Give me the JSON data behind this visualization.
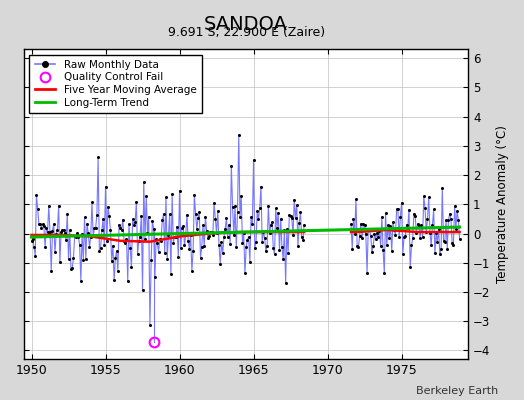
{
  "title": "SANDOA",
  "subtitle": "9.691 S, 22.900 E (Zaire)",
  "ylabel": "Temperature Anomaly (°C)",
  "xlim": [
    1949.5,
    1979.5
  ],
  "ylim": [
    -4.3,
    6.3
  ],
  "yticks": [
    -4,
    -3,
    -2,
    -1,
    0,
    1,
    2,
    3,
    4,
    5,
    6
  ],
  "xticks": [
    1950,
    1955,
    1960,
    1965,
    1970,
    1975
  ],
  "background_color": "#d8d8d8",
  "plot_bg_color": "#ffffff",
  "credit": "Berkeley Earth",
  "raw_line_color": "#7777ff",
  "raw_dot_color": "#000000",
  "qc_color": "#ff00ff",
  "moving_avg_color": "#ff0000",
  "trend_color": "#00bb00",
  "seed": 12345
}
